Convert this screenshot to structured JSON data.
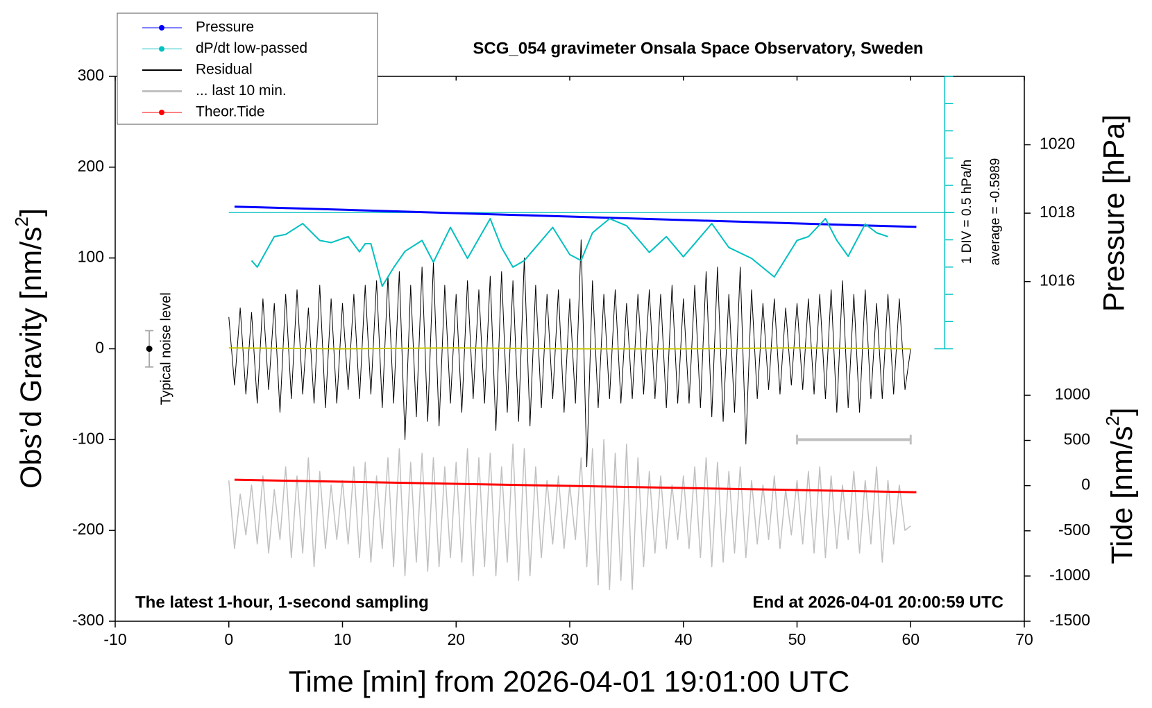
{
  "chart_data": {
    "type": "line",
    "title": "SCG_054 gravimeter Onsala Space Observatory, Sweden",
    "annotations": {
      "left": "The latest 1-hour, 1-second sampling",
      "right": "End at 2026-04-01 20:00:59 UTC",
      "noise_label": "Typical noise level",
      "dpdt_div": "1 DIV = 0.5 hPa/h",
      "dpdt_average_label": "average = -0.5989"
    },
    "xlabel": "Time [min] from 2026-04-01 19:01:00 UTC",
    "ylabel": [
      "Obs’d Gravity [nm/s",
      "2",
      "]"
    ],
    "y2label": "Pressure [hPa]",
    "y3label": [
      "Tide [nm/s",
      "2",
      "]"
    ],
    "xlim": [
      -10,
      70
    ],
    "xticks": [
      -10,
      0,
      10,
      20,
      30,
      40,
      50,
      60,
      70
    ],
    "ylim": [
      -300,
      300
    ],
    "yticks": [
      -300,
      -200,
      -100,
      0,
      100,
      200,
      300
    ],
    "y2lim": [
      1006.07,
      1022.0
    ],
    "y2ticks": [
      1016,
      1018,
      1020
    ],
    "y3lim": [
      -1500,
      4527
    ],
    "y3ticks": [
      -1500,
      -1000,
      -500,
      0,
      500,
      1000
    ],
    "dpdt_ylim": [
      -3.0989,
      1.9011
    ],
    "dpdt_ticks": [
      -3.0989,
      -2.5989,
      -2.0989,
      -1.5989,
      -1.0989,
      -0.5989,
      -0.0989,
      0.4011,
      0.9011,
      1.4011,
      1.9011
    ],
    "dpdt_average": -0.5989,
    "x": [
      0,
      0.5,
      1,
      1.5,
      2,
      2.5,
      3,
      3.5,
      4,
      4.5,
      5,
      5.5,
      6,
      6.5,
      7,
      7.5,
      8,
      8.5,
      9,
      9.5,
      10,
      10.5,
      11,
      11.5,
      12,
      12.5,
      13,
      13.5,
      14,
      14.5,
      15,
      15.5,
      16,
      16.5,
      17,
      17.5,
      18,
      18.5,
      19,
      19.5,
      20,
      20.5,
      21,
      21.5,
      22,
      22.5,
      23,
      23.5,
      24,
      24.5,
      25,
      25.5,
      26,
      26.5,
      27,
      27.5,
      28,
      28.5,
      29,
      29.5,
      30,
      30.5,
      31,
      31.5,
      32,
      32.5,
      33,
      33.5,
      34,
      34.5,
      35,
      35.5,
      36,
      36.5,
      37,
      37.5,
      38,
      38.5,
      39,
      39.5,
      40,
      40.5,
      41,
      41.5,
      42,
      42.5,
      43,
      43.5,
      44,
      44.5,
      45,
      45.5,
      46,
      46.5,
      47,
      47.5,
      48,
      48.5,
      49,
      49.5,
      50,
      50.5,
      51,
      51.5,
      52,
      52.5,
      53,
      53.5,
      54,
      54.5,
      55,
      55.5,
      56,
      56.5,
      57,
      57.5,
      58,
      58.5,
      59,
      59.5,
      60
    ],
    "series": [
      {
        "name": "Pressure",
        "color": "#0000ff",
        "axis": "y2",
        "marker": true,
        "linewidth": 3,
        "x": [
          0.5,
          5,
          10,
          15,
          20,
          25,
          30,
          35,
          40,
          45,
          50,
          55,
          60.5
        ],
        "values": [
          1018.19,
          1018.15,
          1018.1,
          1018.05,
          1018.0,
          1017.95,
          1017.9,
          1017.85,
          1017.8,
          1017.75,
          1017.7,
          1017.65,
          1017.6
        ]
      },
      {
        "name": "dP/dt low-passed",
        "color": "#00c0c0",
        "axis": "dpdt",
        "marker": true,
        "linewidth": 2,
        "x": [
          2,
          2.5,
          4,
          5,
          6.5,
          8,
          9,
          10.5,
          11.5,
          12,
          12.5,
          13.5,
          14.5,
          15.5,
          17,
          18,
          19.5,
          21,
          23,
          24,
          25,
          26,
          28.5,
          30,
          31,
          32,
          33.5,
          35,
          37,
          38.5,
          40,
          42.5,
          44,
          46,
          48,
          50,
          51,
          52.5,
          53.5,
          54.5,
          56,
          57,
          58
        ],
        "values": [
          -1.48,
          -1.6,
          -1.04,
          -1.0,
          -0.8,
          -1.11,
          -1.15,
          -1.04,
          -1.32,
          -1.17,
          -1.17,
          -1.95,
          -1.61,
          -1.31,
          -1.11,
          -1.51,
          -0.87,
          -1.44,
          -0.71,
          -1.24,
          -1.6,
          -1.48,
          -0.87,
          -1.37,
          -1.48,
          -0.97,
          -0.71,
          -0.84,
          -1.33,
          -1.04,
          -1.41,
          -0.8,
          -1.24,
          -1.44,
          -1.78,
          -1.11,
          -1.04,
          -0.71,
          -1.11,
          -1.4,
          -0.81,
          -0.97,
          -1.04
        ]
      },
      {
        "name": "Residual",
        "color": "#000000",
        "linewidth": 1,
        "values": [
          35,
          -40,
          45,
          -50,
          40,
          -60,
          55,
          -45,
          50,
          -70,
          60,
          -55,
          65,
          -50,
          45,
          -60,
          70,
          -65,
          55,
          -60,
          50,
          -45,
          60,
          -55,
          70,
          -50,
          75,
          -65,
          80,
          -60,
          85,
          -100,
          70,
          -75,
          90,
          -80,
          95,
          -85,
          70,
          -60,
          60,
          -70,
          75,
          -55,
          65,
          -60,
          80,
          -90,
          85,
          -70,
          75,
          -80,
          100,
          -85,
          70,
          -65,
          60,
          -55,
          65,
          -70,
          55,
          -60,
          120,
          -130,
          75,
          -65,
          60,
          -55,
          65,
          -60,
          50,
          -55,
          60,
          -50,
          65,
          -55,
          60,
          -65,
          70,
          -60,
          55,
          -60,
          70,
          -65,
          85,
          -75,
          90,
          -80,
          60,
          -70,
          90,
          -105,
          65,
          -55,
          50,
          -45,
          55,
          -50,
          45,
          -40,
          50,
          -45,
          55,
          -50,
          60,
          -55,
          65,
          -70,
          75,
          -65,
          60,
          -70,
          65,
          -55,
          50,
          -55,
          60,
          -50,
          55,
          -45,
          0
        ]
      },
      {
        "name": "... last 10 min.",
        "color": "#c0c0c0",
        "linewidth": 1.5,
        "values": [
          -145,
          -220,
          -160,
          -205,
          -150,
          -215,
          -140,
          -225,
          -155,
          -210,
          -130,
          -230,
          -140,
          -225,
          -120,
          -240,
          -135,
          -220,
          -150,
          -210,
          -145,
          -215,
          -130,
          -230,
          -125,
          -235,
          -140,
          -220,
          -120,
          -240,
          -110,
          -250,
          -125,
          -235,
          -115,
          -245,
          -120,
          -240,
          -130,
          -230,
          -125,
          -235,
          -110,
          -250,
          -120,
          -240,
          -115,
          -250,
          -130,
          -235,
          -105,
          -255,
          -110,
          -250,
          -130,
          -230,
          -145,
          -215,
          -140,
          -220,
          -150,
          -210,
          -120,
          -240,
          -110,
          -260,
          -100,
          -265,
          -115,
          -255,
          -105,
          -265,
          -120,
          -240,
          -135,
          -225,
          -140,
          -220,
          -150,
          -210,
          -140,
          -220,
          -130,
          -230,
          -120,
          -240,
          -125,
          -235,
          -135,
          -225,
          -130,
          -230,
          -145,
          -215,
          -150,
          -210,
          -140,
          -220,
          -155,
          -205,
          -145,
          -215,
          -135,
          -225,
          -130,
          -230,
          -140,
          -220,
          -150,
          -210,
          -135,
          -225,
          -145,
          -215,
          -130,
          -235,
          -145,
          -215,
          -150,
          -200,
          -195
        ]
      },
      {
        "name": "Theor.Tide",
        "color": "#ff0000",
        "axis": "y3",
        "marker": true,
        "linewidth": 3,
        "x": [
          0.5,
          30,
          60.5
        ],
        "values": [
          65,
          -3,
          -73
        ]
      },
      {
        "color": "#c8c800",
        "linewidth": 2,
        "x": [
          0,
          10,
          20,
          30,
          40,
          50,
          60
        ],
        "values": [
          1,
          0,
          1,
          0,
          0,
          1,
          0
        ]
      }
    ],
    "noise_bar": {
      "x": -7,
      "value": 0,
      "error": 20
    },
    "window_bar": {
      "x": [
        50,
        60
      ],
      "value": -100
    }
  }
}
